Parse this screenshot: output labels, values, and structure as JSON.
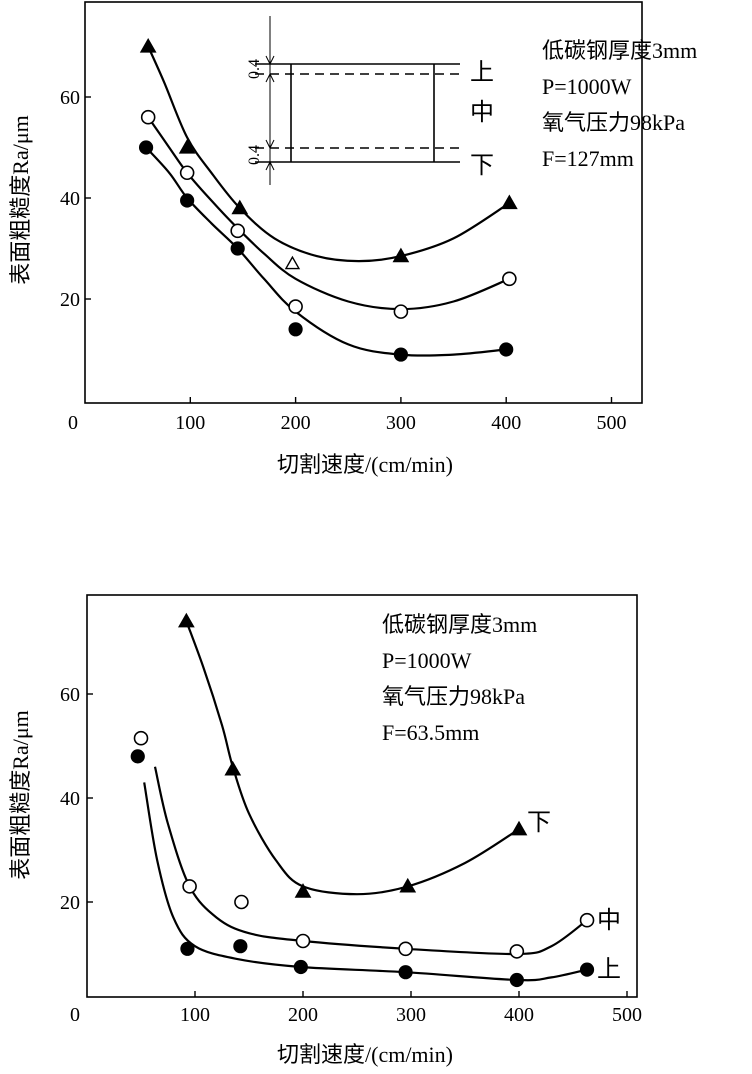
{
  "chart_data": [
    {
      "type": "scatter",
      "xlabel": "切割速度/(cm/min)",
      "ylabel": "表面粗糙度Ra/μm",
      "xlim": [
        0,
        530
      ],
      "ylim": [
        0,
        75
      ],
      "xticks": [
        0,
        100,
        200,
        300,
        400,
        500
      ],
      "yticks": [
        20,
        40,
        60
      ],
      "grid": false,
      "notes": [
        "低碳钢厚度3mm",
        "P=1000W",
        "氧气压力98kPa",
        "F=127mm"
      ],
      "inset": {
        "thickness_labels": [
          "0.4",
          "0.4"
        ],
        "zone_labels": [
          "上",
          "中",
          "下"
        ]
      },
      "series": [
        {
          "marker": "filled-triangle",
          "points": [
            [
              60,
              70
            ],
            [
              97,
              50
            ],
            [
              147,
              38
            ],
            [
              300,
              28.5
            ],
            [
              403,
              39
            ]
          ],
          "curve": [
            [
              60,
              70
            ],
            [
              75,
              63
            ],
            [
              97,
              52
            ],
            [
              120,
              45
            ],
            [
              147,
              38
            ],
            [
              180,
              32
            ],
            [
              220,
              28.5
            ],
            [
              260,
              27.5
            ],
            [
              300,
              28.5
            ],
            [
              350,
              32
            ],
            [
              403,
              39
            ]
          ]
        },
        {
          "marker": "open-circle",
          "points": [
            [
              60,
              56
            ],
            [
              97,
              45
            ],
            [
              145,
              33.5
            ],
            [
              200,
              18.5
            ],
            [
              300,
              17.5
            ],
            [
              403,
              24
            ]
          ],
          "curve": [
            [
              60,
              56
            ],
            [
              80,
              50
            ],
            [
              97,
              45
            ],
            [
              120,
              39.5
            ],
            [
              145,
              34
            ],
            [
              170,
              29
            ],
            [
              200,
              24
            ],
            [
              250,
              19.5
            ],
            [
              300,
              18
            ],
            [
              350,
              19.5
            ],
            [
              403,
              24
            ]
          ]
        },
        {
          "marker": "filled-circle",
          "points": [
            [
              58,
              50
            ],
            [
              97,
              39.5
            ],
            [
              145,
              30
            ],
            [
              200,
              14
            ],
            [
              300,
              9
            ],
            [
              400,
              10
            ]
          ],
          "curve": [
            [
              58,
              50
            ],
            [
              80,
              45
            ],
            [
              97,
              40
            ],
            [
              120,
              35
            ],
            [
              145,
              30
            ],
            [
              170,
              24
            ],
            [
              200,
              17.5
            ],
            [
              250,
              11
            ],
            [
              300,
              9
            ],
            [
              350,
              9
            ],
            [
              400,
              10
            ]
          ]
        },
        {
          "marker": "open-triangle",
          "points": [
            [
              197,
              27
            ]
          ],
          "curve": []
        }
      ]
    },
    {
      "type": "scatter",
      "xlabel": "切割速度/(cm/min)",
      "ylabel": "表面粗糙度Ra/μm",
      "xlim": [
        0,
        530
      ],
      "ylim": [
        0,
        75
      ],
      "xticks": [
        0,
        100,
        200,
        300,
        400,
        500
      ],
      "yticks": [
        20,
        40,
        60
      ],
      "grid": false,
      "notes": [
        "低碳钢厚度3mm",
        "P=1000W",
        "氧气压力98kPa",
        "F=63.5mm"
      ],
      "series": [
        {
          "name": "下",
          "marker": "filled-triangle",
          "points": [
            [
              92,
              74
            ],
            [
              135,
              45.5
            ],
            [
              200,
              22
            ],
            [
              297,
              23
            ],
            [
              400,
              34
            ]
          ],
          "curve": [
            [
              92,
              74
            ],
            [
              108,
              65
            ],
            [
              125,
              54
            ],
            [
              135,
              46
            ],
            [
              150,
              37
            ],
            [
              175,
              28
            ],
            [
              200,
              23
            ],
            [
              250,
              21.5
            ],
            [
              297,
              23
            ],
            [
              350,
              27.5
            ],
            [
              400,
              34
            ]
          ]
        },
        {
          "name": "中",
          "marker": "open-circle",
          "points": [
            [
              50,
              51.5
            ],
            [
              95,
              23
            ],
            [
              143,
              20
            ],
            [
              200,
              12.5
            ],
            [
              295,
              11
            ],
            [
              398,
              10.5
            ],
            [
              463,
              16.5
            ]
          ],
          "curve": [
            [
              63,
              46
            ],
            [
              75,
              35
            ],
            [
              95,
              23
            ],
            [
              120,
              17
            ],
            [
              150,
              14
            ],
            [
              200,
              12.5
            ],
            [
              295,
              11
            ],
            [
              398,
              10
            ],
            [
              430,
              11.5
            ],
            [
              463,
              16.5
            ]
          ]
        },
        {
          "name": "上",
          "marker": "filled-circle",
          "points": [
            [
              47,
              48
            ],
            [
              93,
              11
            ],
            [
              142,
              11.5
            ],
            [
              198,
              7.5
            ],
            [
              295,
              6.5
            ],
            [
              398,
              5
            ],
            [
              463,
              7
            ]
          ],
          "curve": [
            [
              53,
              43
            ],
            [
              65,
              28
            ],
            [
              80,
              17
            ],
            [
              100,
              11.5
            ],
            [
              140,
              9
            ],
            [
              198,
              7.5
            ],
            [
              295,
              6.5
            ],
            [
              398,
              5
            ],
            [
              430,
              5.5
            ],
            [
              463,
              7
            ]
          ]
        }
      ]
    }
  ]
}
